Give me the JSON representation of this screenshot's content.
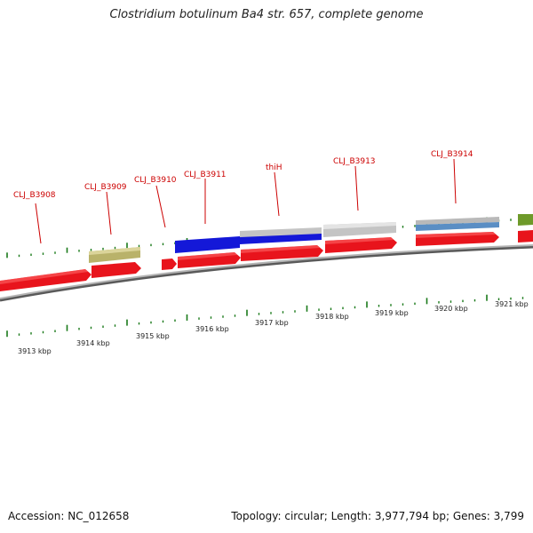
{
  "header": {
    "title": "Clostridium botulinum Ba4 str. 657, complete genome"
  },
  "footer": {
    "accession": "Accession: NC_012658",
    "topology": "Topology: circular; Length: 3,977,794 bp; Genes: 3,799"
  },
  "colors": {
    "cds": "#e8141c",
    "gene_blue": "#1418d8",
    "gene_grey": "#c4c4c4",
    "gene_khaki": "#b9b26a",
    "gene_steelblue": "#5a8ec4",
    "gene_olive": "#6e9a2a",
    "backbone": "#8c8c8c",
    "tick": "#1a7a1a",
    "label": "#cc0000"
  },
  "ruler": {
    "labels": [
      "3913 kbp",
      "3914 kbp",
      "3915 kbp",
      "3916 kbp",
      "3917 kbp",
      "3918 kbp",
      "3919 kbp",
      "3920 kbp",
      "3921 kbp"
    ]
  },
  "gene_labels": [
    "CLJ_B3908",
    "CLJ_B3909",
    "CLJ_B3910",
    "CLJ_B3911",
    "thiH",
    "CLJ_B3913",
    "CLJ_B3914"
  ]
}
